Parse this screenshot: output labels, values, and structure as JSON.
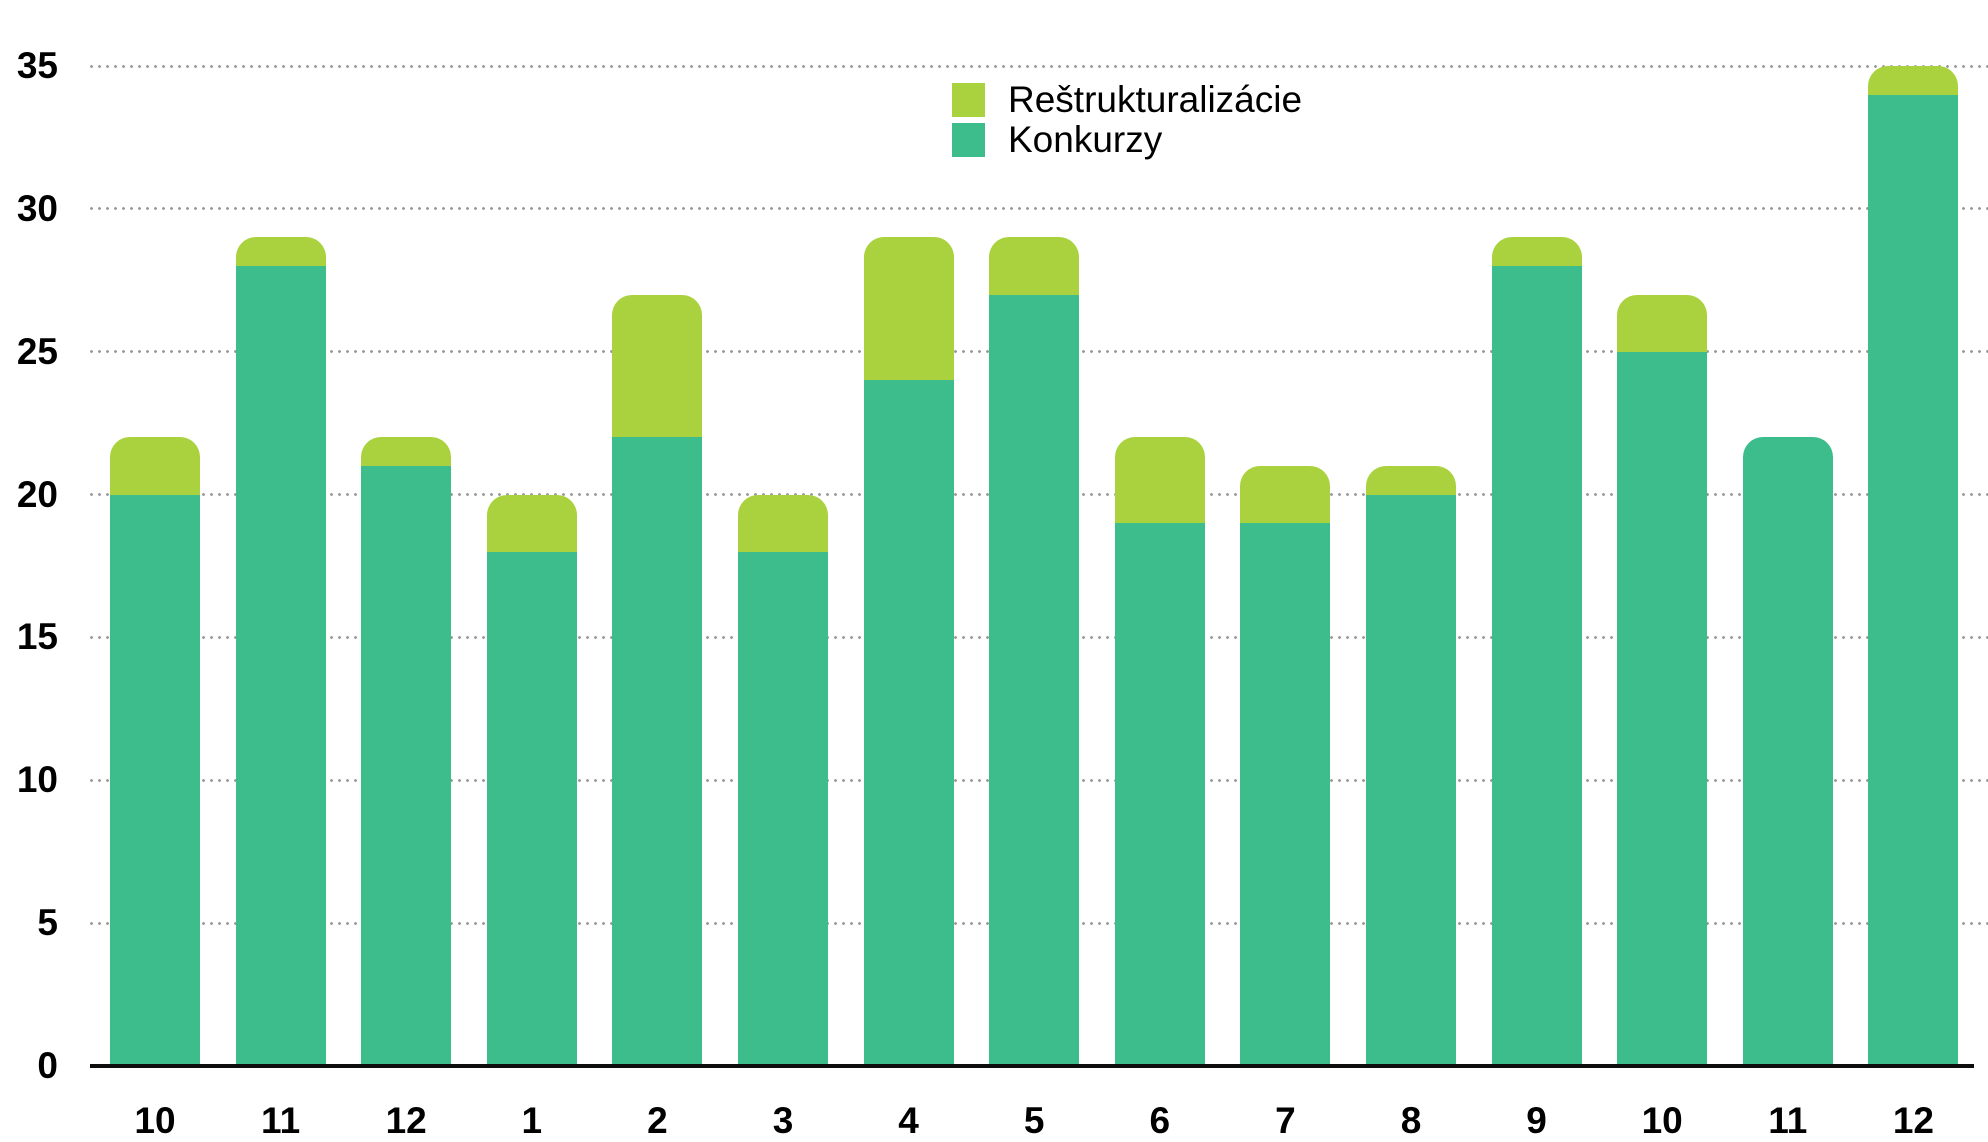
{
  "chart_data": {
    "type": "bar",
    "stacked": true,
    "title": "",
    "xlabel": "",
    "ylabel": "",
    "categories": [
      "10",
      "11",
      "12",
      "1",
      "2",
      "3",
      "4",
      "5",
      "6",
      "7",
      "8",
      "9",
      "10",
      "11",
      "12"
    ],
    "series": [
      {
        "name": "Reštrukturalizácie",
        "color": "#a9d23e",
        "values": [
          2,
          1,
          1,
          2,
          5,
          2,
          5,
          2,
          3,
          2,
          1,
          1,
          2,
          0,
          1
        ]
      },
      {
        "name": "Konkurzy",
        "color": "#3dbc8c",
        "values": [
          20,
          28,
          21,
          18,
          22,
          18,
          24,
          27,
          19,
          19,
          20,
          28,
          25,
          22,
          34
        ]
      }
    ],
    "totals": [
      22,
      29,
      22,
      20,
      27,
      20,
      29,
      29,
      22,
      21,
      21,
      29,
      27,
      22,
      35
    ],
    "ylim": [
      0,
      35
    ],
    "y_ticks": [
      0,
      5,
      10,
      15,
      20,
      25,
      30,
      35
    ],
    "grid": "horizontal-dotted",
    "legend_position": "top-center"
  },
  "legend": {
    "items": [
      {
        "label": "Reštrukturalizácie",
        "color": "#a9d23e"
      },
      {
        "label": "Konkurzy",
        "color": "#3dbc8c"
      }
    ]
  },
  "colors": {
    "restrukturalizacie": "#a9d23e",
    "konkurzy": "#3dbc8c",
    "axis": "#0d0d0d",
    "gridline_dots": "#9a9a9a",
    "background": "#ffffff",
    "label_text": "#000000"
  }
}
